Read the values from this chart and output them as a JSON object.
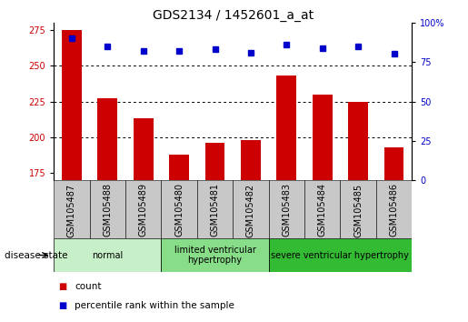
{
  "title": "GDS2134 / 1452601_a_at",
  "samples": [
    "GSM105487",
    "GSM105488",
    "GSM105489",
    "GSM105480",
    "GSM105481",
    "GSM105482",
    "GSM105483",
    "GSM105484",
    "GSM105485",
    "GSM105486"
  ],
  "counts": [
    275,
    227,
    213,
    188,
    196,
    198,
    243,
    230,
    225,
    193
  ],
  "percentile_ranks": [
    90,
    85,
    82,
    82,
    83,
    81,
    86,
    84,
    85,
    80
  ],
  "ylim_left": [
    170,
    280
  ],
  "ylim_right": [
    0,
    100
  ],
  "yticks_left": [
    175,
    200,
    225,
    250,
    275
  ],
  "yticks_right": [
    0,
    25,
    50,
    75,
    100
  ],
  "groups": [
    {
      "label": "normal",
      "indices": [
        0,
        1,
        2
      ],
      "color": "#c8f0c8"
    },
    {
      "label": "limited ventricular\nhypertrophy",
      "indices": [
        3,
        4,
        5
      ],
      "color": "#88dd88"
    },
    {
      "label": "severe ventricular hypertrophy",
      "indices": [
        6,
        7,
        8,
        9
      ],
      "color": "#33bb33"
    }
  ],
  "bar_color": "#cc0000",
  "dot_color": "#0000cc",
  "grid_dotted_vals": [
    200,
    225,
    250
  ],
  "sample_bg_color": "#c8c8c8",
  "disease_state_label": "disease state",
  "legend_count_label": "count",
  "legend_percentile_label": "percentile rank within the sample",
  "title_fontsize": 10,
  "tick_fontsize": 7,
  "sample_label_fontsize": 7,
  "group_label_fontsize": 7,
  "legend_fontsize": 7.5,
  "disease_label_fontsize": 7.5
}
